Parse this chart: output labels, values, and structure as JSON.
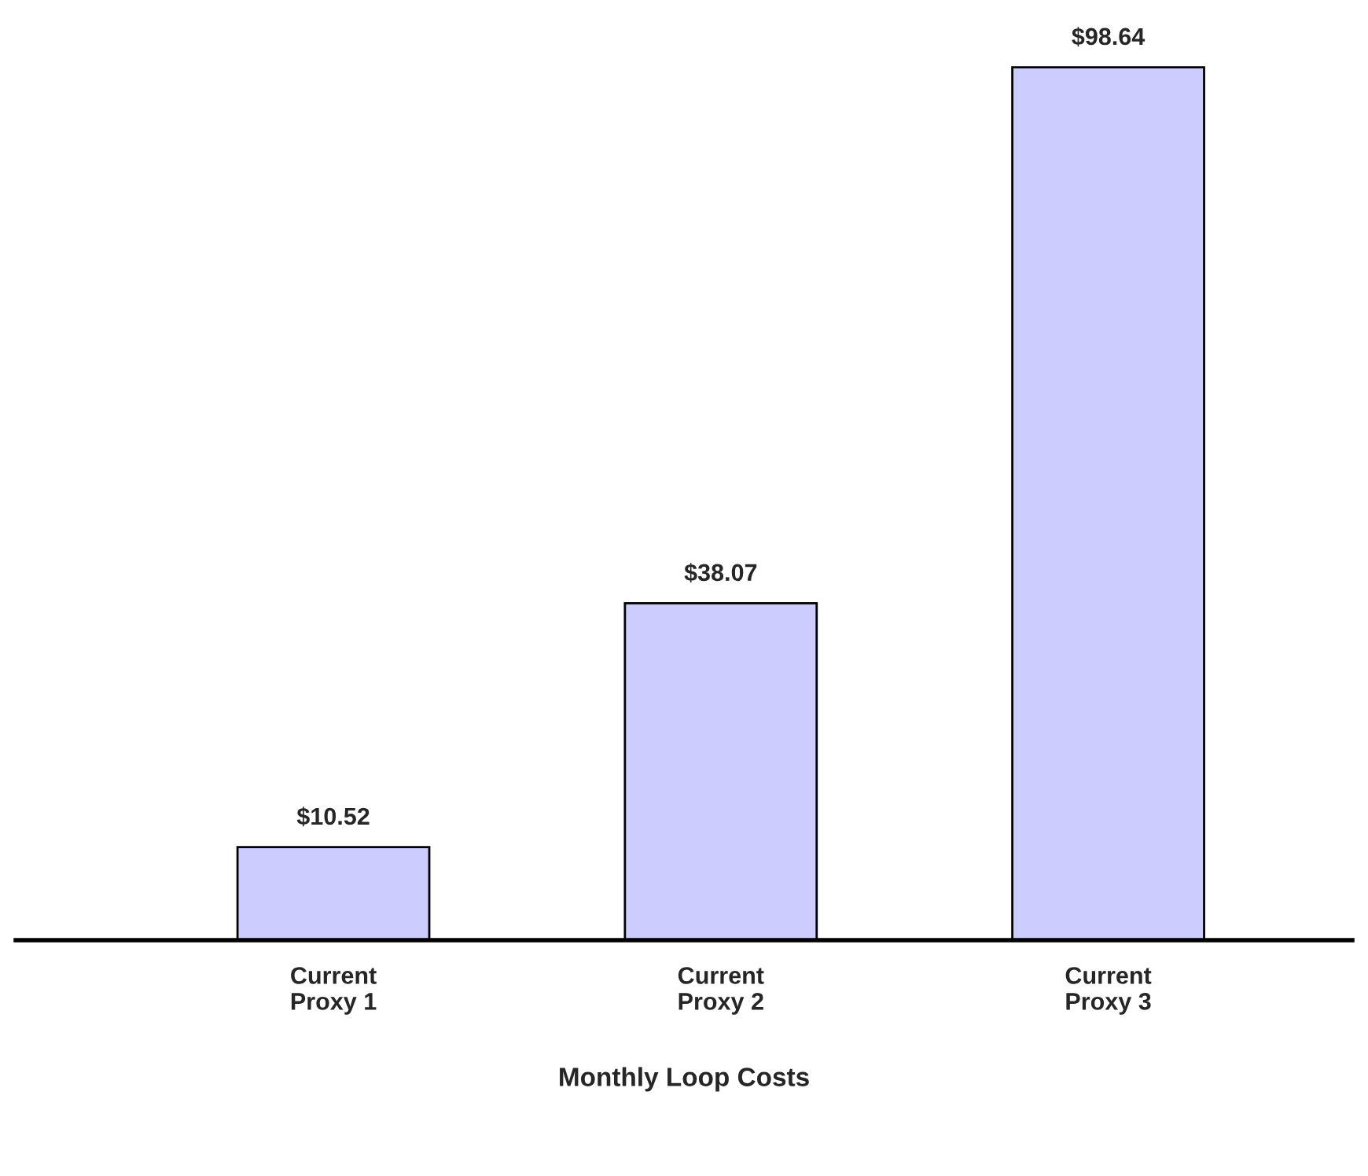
{
  "chart_data": {
    "type": "bar",
    "xlabel": "Monthly Loop Costs",
    "categories": [
      "Current\nProxy 1",
      "Current\nProxy 2",
      "Current\nProxy 3"
    ],
    "values": [
      10.52,
      38.07,
      98.64
    ],
    "value_labels": [
      "$10.52",
      "$38.07",
      "$98.64"
    ],
    "color": "#ccccff",
    "grid": false,
    "legend": false
  }
}
